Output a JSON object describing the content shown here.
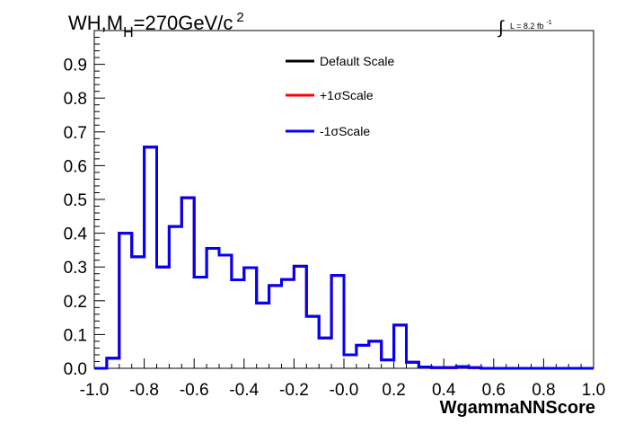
{
  "chart_data": {
    "type": "histogram",
    "title": {
      "prefix": "WH,M",
      "subscript": "H",
      "suffix": "=270GeV/c",
      "superscript": "2"
    },
    "lumi": {
      "integral": "∫",
      "text": "L = 8.2 fb",
      "exponent": "-1"
    },
    "xlabel": "WgammaNNScore",
    "ylabel": "",
    "xlim": [
      -1.0,
      1.0
    ],
    "ylim": [
      0.0,
      1.0
    ],
    "x_ticks": [
      "-1.0",
      "-0.8",
      "-0.6",
      "-0.4",
      "-0.2",
      "-0.0",
      "0.2",
      "0.4",
      "0.6",
      "0.8",
      "1.0"
    ],
    "y_ticks": [
      "0.0",
      "0.1",
      "0.2",
      "0.3",
      "0.4",
      "0.5",
      "0.6",
      "0.7",
      "0.8",
      "0.9"
    ],
    "bin_edges": [
      -1.0,
      -0.95,
      -0.9,
      -0.85,
      -0.8,
      -0.75,
      -0.7,
      -0.65,
      -0.6,
      -0.55,
      -0.5,
      -0.45,
      -0.4,
      -0.35,
      -0.3,
      -0.25,
      -0.2,
      -0.15,
      -0.1,
      -0.05,
      0.0,
      0.05,
      0.1,
      0.15,
      0.2,
      0.25,
      0.3,
      0.35,
      0.4,
      0.45,
      0.5,
      0.55,
      0.6,
      0.65,
      0.7,
      0.75,
      0.8,
      0.85,
      0.9,
      0.95,
      1.0
    ],
    "legend_position": "top-center",
    "series": [
      {
        "name": "Default Scale",
        "color": "#000000",
        "values": [
          0.0,
          0.03,
          0.4,
          0.33,
          0.655,
          0.3,
          0.42,
          0.505,
          0.27,
          0.355,
          0.335,
          0.262,
          0.298,
          0.193,
          0.245,
          0.263,
          0.302,
          0.154,
          0.09,
          0.275,
          0.04,
          0.068,
          0.08,
          0.025,
          0.128,
          0.018,
          0.004,
          0.002,
          0.002,
          0.005,
          0.002,
          0.0,
          0.0,
          0.0,
          0.0,
          0.0,
          0.0,
          0.0,
          0.0,
          0.0
        ]
      },
      {
        "name": "+1σScale",
        "color": "#ff0000",
        "values": [
          0.0,
          0.03,
          0.4,
          0.33,
          0.655,
          0.3,
          0.42,
          0.505,
          0.27,
          0.355,
          0.335,
          0.262,
          0.298,
          0.193,
          0.245,
          0.263,
          0.302,
          0.154,
          0.09,
          0.275,
          0.04,
          0.068,
          0.08,
          0.025,
          0.128,
          0.018,
          0.004,
          0.002,
          0.002,
          0.005,
          0.002,
          0.0,
          0.0,
          0.0,
          0.0,
          0.0,
          0.0,
          0.0,
          0.0,
          0.0
        ]
      },
      {
        "name": "-1σScale",
        "color": "#0000ff",
        "values": [
          0.0,
          0.03,
          0.4,
          0.33,
          0.655,
          0.3,
          0.42,
          0.505,
          0.27,
          0.355,
          0.335,
          0.262,
          0.298,
          0.193,
          0.245,
          0.263,
          0.302,
          0.154,
          0.09,
          0.275,
          0.04,
          0.068,
          0.08,
          0.025,
          0.128,
          0.018,
          0.004,
          0.002,
          0.002,
          0.005,
          0.002,
          0.0,
          0.0,
          0.0,
          0.0,
          0.0,
          0.0,
          0.0,
          0.0,
          0.0
        ]
      }
    ]
  }
}
